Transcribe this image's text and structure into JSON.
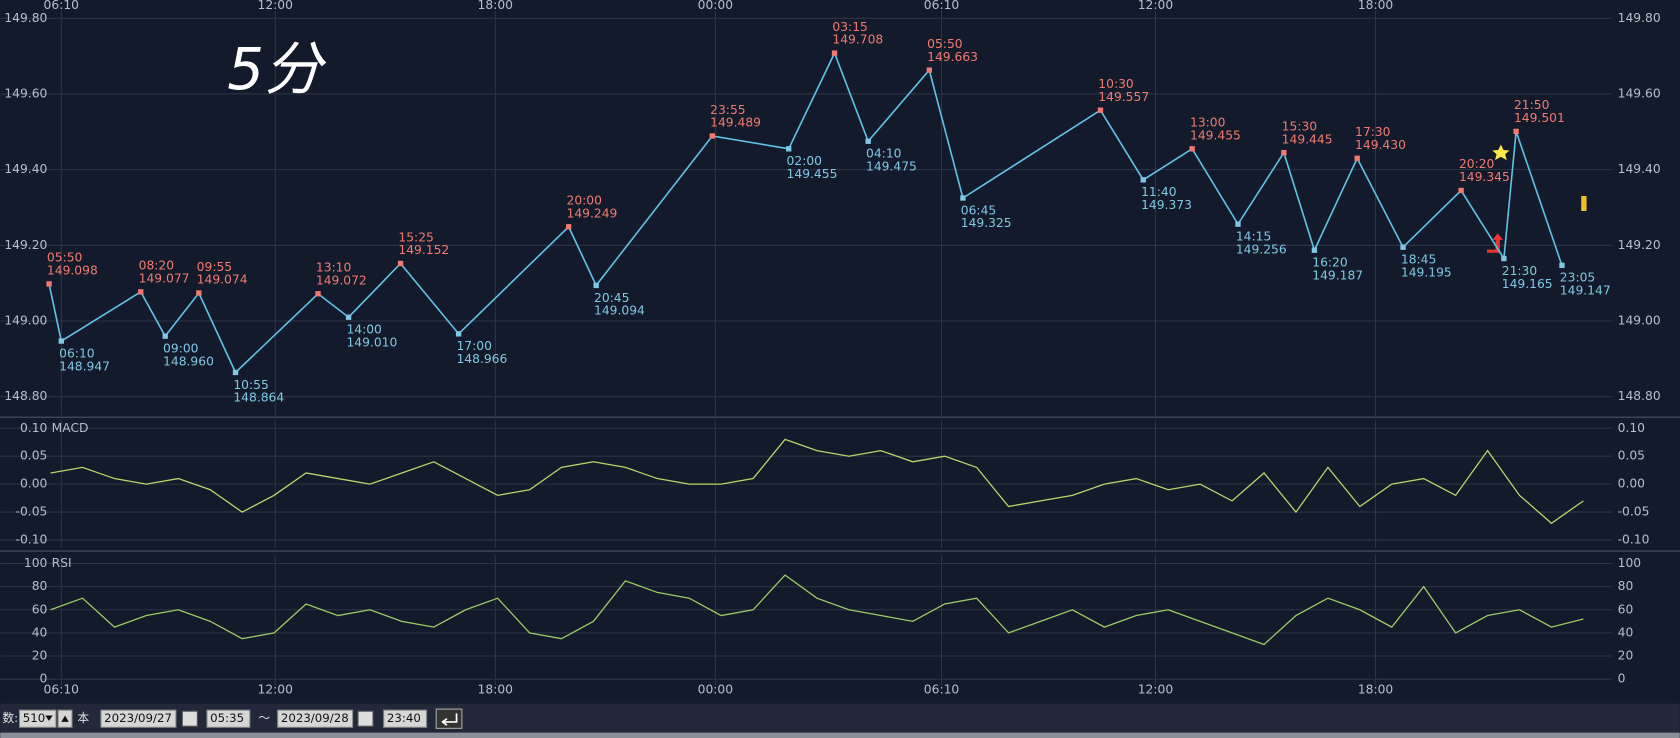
{
  "chart_data": [
    {
      "type": "line",
      "annotation": "5分",
      "xticks": [
        "06:10",
        "12:00",
        "18:00",
        "00:00",
        "06:10",
        "12:00",
        "18:00"
      ],
      "x": [
        "05:50",
        "06:10",
        "08:20",
        "09:00",
        "09:55",
        "10:55",
        "13:10",
        "14:00",
        "15:25",
        "17:00",
        "20:00",
        "20:45",
        "23:55",
        "02:00",
        "03:15",
        "04:10",
        "05:50",
        "06:45",
        "10:30",
        "11:40",
        "13:00",
        "14:15",
        "15:30",
        "16:20",
        "17:30",
        "18:45",
        "20:20",
        "21:30",
        "21:50",
        "23:05"
      ],
      "values": [
        149.098,
        148.947,
        149.077,
        148.96,
        149.074,
        148.864,
        149.072,
        149.01,
        149.152,
        148.966,
        149.249,
        149.094,
        149.489,
        149.455,
        149.708,
        149.475,
        149.663,
        149.325,
        149.557,
        149.373,
        149.455,
        149.256,
        149.445,
        149.187,
        149.43,
        149.195,
        149.345,
        149.165,
        149.501,
        149.147
      ],
      "value_labels": [
        "149.098",
        "148.947",
        "149.077",
        "148.960",
        "149.074",
        "148.864",
        "149.072",
        "149.010",
        "149.152",
        "148.966",
        "149.249",
        "149.094",
        "149.489",
        "149.455",
        "149.708",
        "149.475",
        "149.663",
        "149.325",
        "149.557",
        "149.373",
        "149.455",
        "149.256",
        "149.445",
        "149.187",
        "149.430",
        "149.195",
        "149.345",
        "149.165",
        "149.501",
        "149.147"
      ],
      "color": "#5fc3e4",
      "high_color": "#f07a70",
      "low_color": "#7ec8e3",
      "ylim": [
        148.75,
        149.82
      ],
      "yticks": [
        {
          "value": 148.8,
          "label": "148.80"
        },
        {
          "value": 149,
          "label": "149.00"
        },
        {
          "value": 149.2,
          "label": "149.20"
        },
        {
          "value": 149.4,
          "label": "149.40"
        },
        {
          "value": 149.6,
          "label": "149.60"
        },
        {
          "value": 149.8,
          "label": "149.80"
        }
      ],
      "grid": true
    },
    {
      "type": "line",
      "title": "MACD",
      "color": "#b5d86a",
      "values": [
        0.02,
        0.03,
        0.01,
        0.0,
        0.01,
        -0.01,
        -0.05,
        -0.02,
        0.02,
        0.01,
        0.0,
        0.02,
        0.04,
        0.01,
        -0.02,
        -0.01,
        0.03,
        0.04,
        0.03,
        0.01,
        0.0,
        0.0,
        0.01,
        0.08,
        0.06,
        0.05,
        0.06,
        0.04,
        0.05,
        0.03,
        -0.04,
        -0.03,
        -0.02,
        0.0,
        0.01,
        -0.01,
        0.0,
        -0.03,
        0.02,
        -0.05,
        0.03,
        -0.04,
        0.0,
        0.01,
        -0.02,
        0.06,
        -0.02,
        -0.07,
        -0.03
      ],
      "ylim": [
        -0.115,
        0.115
      ],
      "yticks": [
        {
          "value": -0.1,
          "label": "-0.10"
        },
        {
          "value": -0.05,
          "label": "-0.05"
        },
        {
          "value": 0,
          "label": "0.00"
        },
        {
          "value": 0.05,
          "label": "0.05"
        },
        {
          "value": 0.1,
          "label": "0.10"
        }
      ],
      "grid": true
    },
    {
      "type": "line",
      "title": "RSI",
      "color": "#9ccc65",
      "values": [
        60,
        70,
        45,
        55,
        60,
        50,
        35,
        40,
        65,
        55,
        60,
        50,
        45,
        60,
        70,
        40,
        35,
        50,
        85,
        75,
        70,
        55,
        60,
        90,
        70,
        60,
        55,
        50,
        65,
        70,
        40,
        50,
        60,
        45,
        55,
        60,
        50,
        40,
        30,
        55,
        70,
        60,
        45,
        80,
        40,
        55,
        60,
        45,
        52
      ],
      "ylim": [
        -5.5,
        107.5
      ],
      "yticks": [
        0,
        20,
        40,
        60,
        80,
        100
      ],
      "grid": true
    }
  ],
  "toolbar": {
    "count_label": "数:",
    "count": 510,
    "unit": "本",
    "start_date": "2023/09/27",
    "start_time": "05:35",
    "separator": "～",
    "end_date": "2023/09/28",
    "end_time": "23:40"
  }
}
